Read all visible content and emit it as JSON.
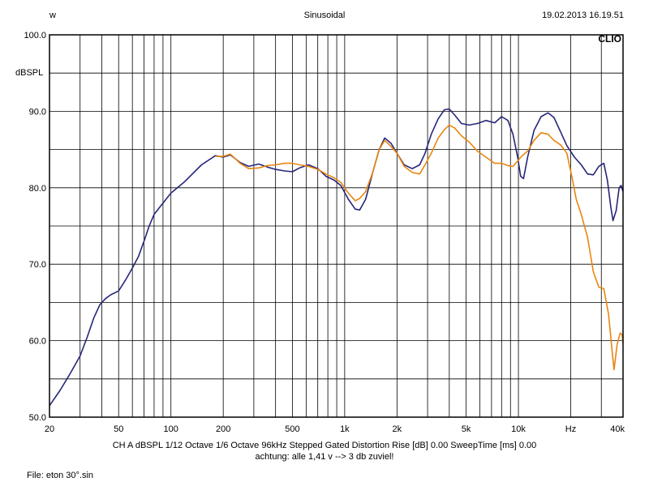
{
  "header": {
    "left": "w",
    "center": "Sinusoidal",
    "right": "19.02.2013 16.19.51"
  },
  "brand": "CLIO",
  "footer": {
    "line1": "CH A   dBSPL    1/12 Octave    1/6 Octave   96kHz   Stepped    Gated    Distortion Rise [dB] 0.00    SweepTime [ms] 0.00",
    "line2": "achtung: alle 1,41 v --> 3 db zuviel!",
    "file": "File: eton 30°.sin"
  },
  "chart_data": {
    "type": "line",
    "xscale": "log",
    "xlim": [
      20,
      40000
    ],
    "ylim": [
      50,
      100
    ],
    "ylabel": "dBSPL",
    "xticks": [
      {
        "value": 20,
        "label": "20"
      },
      {
        "value": 50,
        "label": "50"
      },
      {
        "value": 100,
        "label": "100"
      },
      {
        "value": 200,
        "label": "200"
      },
      {
        "value": 500,
        "label": "500"
      },
      {
        "value": 1000,
        "label": "1k"
      },
      {
        "value": 2000,
        "label": "2k"
      },
      {
        "value": 5000,
        "label": "5k"
      },
      {
        "value": 10000,
        "label": "10k"
      },
      {
        "value": 20000,
        "label": "Hz"
      },
      {
        "value": 40000,
        "label": "40k"
      }
    ],
    "yticks": [
      {
        "value": 100,
        "label": "100.0"
      },
      {
        "value": 90,
        "label": "90.0"
      },
      {
        "value": 80,
        "label": "80.0"
      },
      {
        "value": 70,
        "label": "70.0"
      },
      {
        "value": 60,
        "label": "60.0"
      },
      {
        "value": 50,
        "label": "50.0"
      }
    ],
    "grid": true,
    "series": [
      {
        "color": "#26267a",
        "points": [
          [
            20,
            51.5
          ],
          [
            23,
            53.5
          ],
          [
            26,
            55.5
          ],
          [
            30,
            58
          ],
          [
            33,
            60.5
          ],
          [
            36,
            63
          ],
          [
            39,
            64.7
          ],
          [
            42,
            65.5
          ],
          [
            45,
            66
          ],
          [
            50,
            66.5
          ],
          [
            55,
            68
          ],
          [
            60,
            69.5
          ],
          [
            65,
            71
          ],
          [
            70,
            73
          ],
          [
            75,
            75
          ],
          [
            80,
            76.5
          ],
          [
            90,
            78
          ],
          [
            100,
            79.3
          ],
          [
            120,
            80.8
          ],
          [
            150,
            83
          ],
          [
            180,
            84.2
          ],
          [
            200,
            84
          ],
          [
            220,
            84.3
          ],
          [
            250,
            83.3
          ],
          [
            280,
            82.8
          ],
          [
            320,
            83.1
          ],
          [
            360,
            82.7
          ],
          [
            400,
            82.4
          ],
          [
            450,
            82.2
          ],
          [
            500,
            82.1
          ],
          [
            550,
            82.6
          ],
          [
            620,
            83
          ],
          [
            700,
            82.5
          ],
          [
            780,
            81.5
          ],
          [
            870,
            81
          ],
          [
            950,
            80.3
          ],
          [
            1050,
            78.5
          ],
          [
            1150,
            77.2
          ],
          [
            1220,
            77.1
          ],
          [
            1320,
            78.5
          ],
          [
            1450,
            82
          ],
          [
            1580,
            85
          ],
          [
            1700,
            86.5
          ],
          [
            1850,
            85.8
          ],
          [
            2000,
            84.5
          ],
          [
            2200,
            83
          ],
          [
            2450,
            82.5
          ],
          [
            2700,
            83
          ],
          [
            2900,
            84.5
          ],
          [
            3150,
            87
          ],
          [
            3450,
            89
          ],
          [
            3750,
            90.2
          ],
          [
            4000,
            90.3
          ],
          [
            4300,
            89.5
          ],
          [
            4700,
            88.4
          ],
          [
            5200,
            88.2
          ],
          [
            5800,
            88.4
          ],
          [
            6500,
            88.8
          ],
          [
            7300,
            88.5
          ],
          [
            8000,
            89.3
          ],
          [
            8700,
            88.8
          ],
          [
            9300,
            87
          ],
          [
            9900,
            84
          ],
          [
            10300,
            81.5
          ],
          [
            10700,
            81.2
          ],
          [
            11300,
            84
          ],
          [
            12300,
            87.5
          ],
          [
            13500,
            89.3
          ],
          [
            14800,
            89.8
          ],
          [
            16000,
            89.2
          ],
          [
            17500,
            87.3
          ],
          [
            19000,
            85.5
          ],
          [
            21000,
            84
          ],
          [
            23000,
            83
          ],
          [
            25000,
            81.8
          ],
          [
            27000,
            81.7
          ],
          [
            29000,
            82.8
          ],
          [
            31000,
            83.2
          ],
          [
            32500,
            81
          ],
          [
            34000,
            77.5
          ],
          [
            35000,
            75.7
          ],
          [
            36500,
            77
          ],
          [
            38000,
            80
          ],
          [
            39000,
            80.3
          ],
          [
            40000,
            79.5
          ]
        ]
      },
      {
        "color": "#e8860f",
        "points": [
          [
            180,
            84.1
          ],
          [
            200,
            84.1
          ],
          [
            220,
            84.4
          ],
          [
            250,
            83.2
          ],
          [
            280,
            82.5
          ],
          [
            320,
            82.6
          ],
          [
            360,
            82.9
          ],
          [
            400,
            83
          ],
          [
            450,
            83.2
          ],
          [
            500,
            83.2
          ],
          [
            550,
            83
          ],
          [
            620,
            82.8
          ],
          [
            700,
            82.4
          ],
          [
            780,
            81.8
          ],
          [
            870,
            81.3
          ],
          [
            950,
            80.7
          ],
          [
            1050,
            79.3
          ],
          [
            1150,
            78.3
          ],
          [
            1220,
            78.6
          ],
          [
            1320,
            79.5
          ],
          [
            1450,
            82
          ],
          [
            1580,
            85
          ],
          [
            1700,
            86.2
          ],
          [
            1850,
            85.4
          ],
          [
            2000,
            84.5
          ],
          [
            2200,
            82.8
          ],
          [
            2450,
            82
          ],
          [
            2700,
            81.8
          ],
          [
            2900,
            83
          ],
          [
            3150,
            84.5
          ],
          [
            3450,
            86.5
          ],
          [
            3750,
            87.6
          ],
          [
            4000,
            88.2
          ],
          [
            4300,
            87.8
          ],
          [
            4700,
            86.8
          ],
          [
            5200,
            86
          ],
          [
            5800,
            84.8
          ],
          [
            6500,
            84
          ],
          [
            7300,
            83.2
          ],
          [
            8000,
            83.2
          ],
          [
            8700,
            82.9
          ],
          [
            9300,
            82.8
          ],
          [
            9900,
            83.5
          ],
          [
            10500,
            84.2
          ],
          [
            11300,
            84.8
          ],
          [
            12300,
            86.2
          ],
          [
            13500,
            87.2
          ],
          [
            14800,
            87
          ],
          [
            16000,
            86.2
          ],
          [
            17500,
            85.6
          ],
          [
            19000,
            84.5
          ],
          [
            20500,
            81
          ],
          [
            21500,
            78.5
          ],
          [
            23000,
            76.5
          ],
          [
            25000,
            73.5
          ],
          [
            27000,
            69
          ],
          [
            29000,
            67
          ],
          [
            31000,
            66.8
          ],
          [
            33000,
            63.5
          ],
          [
            34500,
            59
          ],
          [
            35500,
            56.2
          ],
          [
            37000,
            59.5
          ],
          [
            38500,
            61
          ],
          [
            39500,
            60.8
          ],
          [
            40000,
            59.7
          ]
        ]
      }
    ]
  }
}
